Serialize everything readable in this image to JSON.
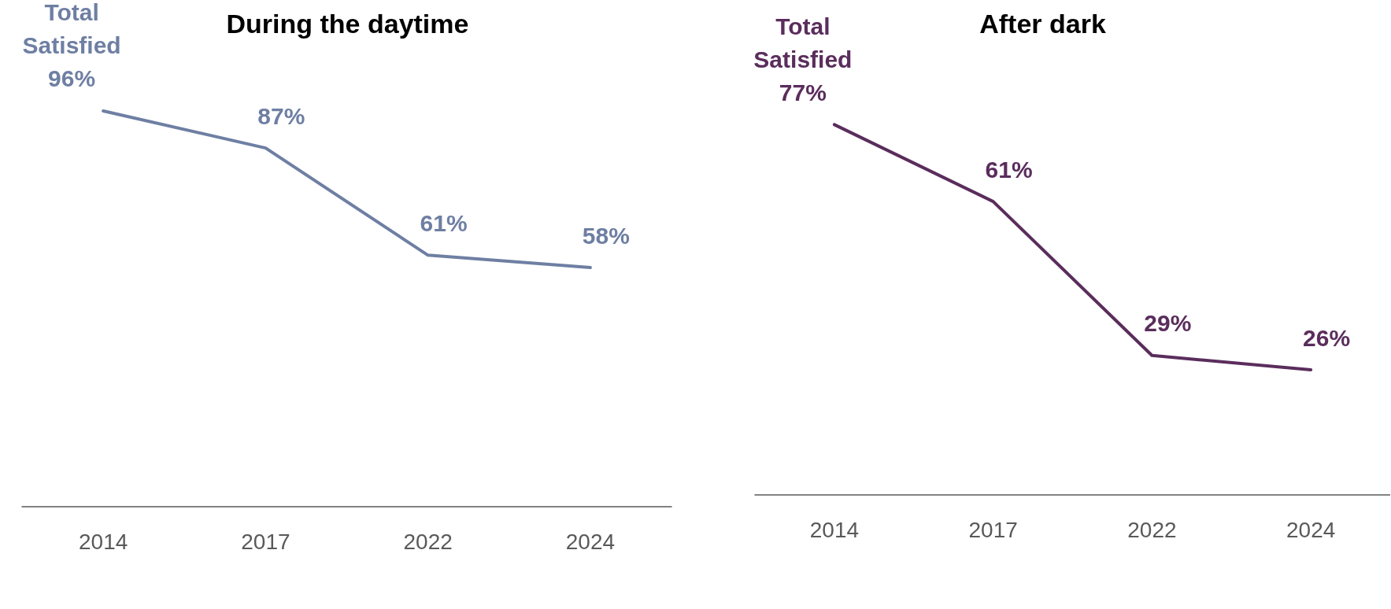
{
  "chart_data": [
    {
      "type": "line",
      "title": "During the daytime",
      "categories": [
        "2014",
        "2017",
        "2022",
        "2024"
      ],
      "series": [
        {
          "name": "Total Satisfied",
          "color": "#6e7fa3",
          "values": [
            96,
            87,
            61,
            58
          ],
          "value_labels": [
            "96%",
            "87%",
            "61%",
            "58%"
          ]
        }
      ]
    },
    {
      "type": "line",
      "title": "After dark",
      "categories": [
        "2014",
        "2017",
        "2022",
        "2024"
      ],
      "series": [
        {
          "name": "Total Satisfied",
          "color": "#5a2d5c",
          "values": [
            77,
            61,
            29,
            26
          ],
          "value_labels": [
            "77%",
            "61%",
            "29%",
            "26%"
          ]
        }
      ]
    }
  ]
}
